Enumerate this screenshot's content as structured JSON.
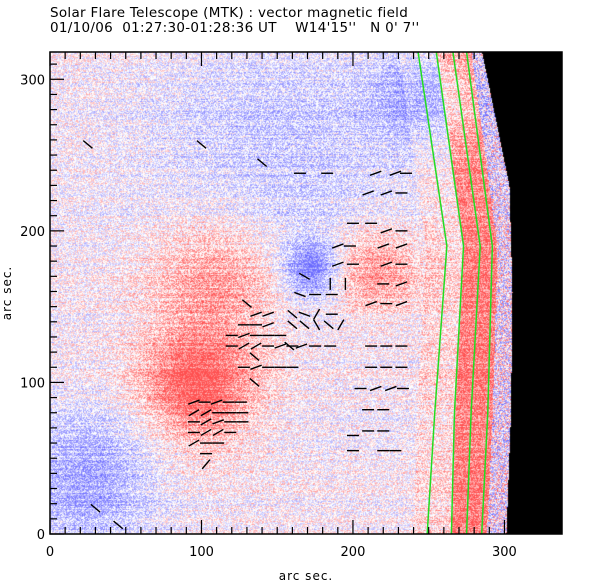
{
  "header": {
    "title": "Solar Flare Telescope (MTK) : vector magnetic field",
    "subtitle_date": "01/10/06",
    "subtitle_time": "01:27:30-01:28:36 UT",
    "subtitle_position": "W14'15''   N 0' 7''"
  },
  "chart_data": {
    "type": "heatmap",
    "title": "Solar Flare Telescope (MTK) : vector magnetic field",
    "subtitle": "01/10/06  01:27:30-01:28:36 UT    W14'15''   N 0' 7''",
    "xlabel": "arc sec.",
    "ylabel": "arc sec.",
    "xlim": [
      0,
      338
    ],
    "ylim": [
      0,
      318
    ],
    "xticks": [
      0,
      100,
      200,
      300
    ],
    "yticks": [
      0,
      100,
      200,
      300
    ],
    "xtick_labels": [
      "0",
      "100",
      "200",
      "300"
    ],
    "ytick_labels": [
      "0",
      "100",
      "200",
      "300"
    ],
    "minor_tick_step": 10,
    "colormap": {
      "positive": "#ff3b3b",
      "negative": "#5b5bff",
      "zero": "#ffffff",
      "off_disk": "#000000",
      "contour": "#22dd22",
      "vector": "#000000"
    },
    "polarity_regions": [
      {
        "name": "positive-spot-main",
        "x": 97,
        "y": 97,
        "radius": 38,
        "strength": 0.95
      },
      {
        "name": "positive-plage-center-left",
        "x": 110,
        "y": 170,
        "radius": 45,
        "strength": 0.6
      },
      {
        "name": "negative-spot",
        "x": 172,
        "y": 175,
        "radius": 18,
        "strength": 0.9
      },
      {
        "name": "positive-plage-right",
        "x": 215,
        "y": 175,
        "radius": 30,
        "strength": 0.65
      },
      {
        "name": "negative-region-lower-left",
        "x": 25,
        "y": 35,
        "radius": 45,
        "strength": 0.6
      },
      {
        "name": "negative-band-top",
        "x": 150,
        "y": 250,
        "radius": 90,
        "strength": 0.35
      },
      {
        "name": "negative-region-top-right",
        "x": 250,
        "y": 290,
        "radius": 35,
        "strength": 0.6
      }
    ],
    "limb_contours": [
      {
        "name": "contour-1",
        "points": [
          [
            243,
            318
          ],
          [
            262,
            190
          ],
          [
            254,
            80
          ],
          [
            249,
            0
          ]
        ]
      },
      {
        "name": "contour-2",
        "points": [
          [
            255,
            318
          ],
          [
            273,
            190
          ],
          [
            267,
            80
          ],
          [
            265,
            0
          ]
        ]
      },
      {
        "name": "contour-3",
        "points": [
          [
            266,
            318
          ],
          [
            284,
            190
          ],
          [
            278,
            80
          ],
          [
            275,
            0
          ]
        ]
      },
      {
        "name": "contour-4",
        "points": [
          [
            275,
            318
          ],
          [
            292,
            190
          ],
          [
            289,
            80
          ],
          [
            285,
            0
          ]
        ]
      }
    ],
    "limb_edge": [
      [
        285,
        318
      ],
      [
        303,
        230
      ],
      [
        305,
        160
      ],
      [
        304,
        80
      ],
      [
        301,
        0
      ]
    ],
    "vectors": [
      {
        "x": 25,
        "y": 257,
        "angle": -40
      },
      {
        "x": 100,
        "y": 257,
        "angle": -40
      },
      {
        "x": 140,
        "y": 245,
        "angle": -40
      },
      {
        "x": 165,
        "y": 238,
        "angle": 0
      },
      {
        "x": 183,
        "y": 238,
        "angle": 0
      },
      {
        "x": 215,
        "y": 238,
        "angle": 20
      },
      {
        "x": 228,
        "y": 238,
        "angle": 20
      },
      {
        "x": 235,
        "y": 238,
        "angle": 0
      },
      {
        "x": 210,
        "y": 225,
        "angle": 20
      },
      {
        "x": 222,
        "y": 225,
        "angle": 20
      },
      {
        "x": 232,
        "y": 225,
        "angle": 0
      },
      {
        "x": 135,
        "y": 100,
        "angle": -40
      },
      {
        "x": 95,
        "y": 87,
        "angle": 20
      },
      {
        "x": 102,
        "y": 87,
        "angle": 0
      },
      {
        "x": 110,
        "y": 87,
        "angle": 20
      },
      {
        "x": 118,
        "y": 87,
        "angle": 0
      },
      {
        "x": 126,
        "y": 87,
        "angle": 0
      },
      {
        "x": 95,
        "y": 80,
        "angle": 210
      },
      {
        "x": 103,
        "y": 80,
        "angle": 210
      },
      {
        "x": 111,
        "y": 80,
        "angle": 0
      },
      {
        "x": 119,
        "y": 80,
        "angle": 0
      },
      {
        "x": 127,
        "y": 80,
        "angle": 0
      },
      {
        "x": 95,
        "y": 74,
        "angle": 0
      },
      {
        "x": 103,
        "y": 74,
        "angle": 210
      },
      {
        "x": 111,
        "y": 74,
        "angle": 20
      },
      {
        "x": 119,
        "y": 74,
        "angle": 0
      },
      {
        "x": 127,
        "y": 74,
        "angle": 0
      },
      {
        "x": 95,
        "y": 67,
        "angle": 0
      },
      {
        "x": 103,
        "y": 67,
        "angle": 210
      },
      {
        "x": 111,
        "y": 67,
        "angle": 210
      },
      {
        "x": 119,
        "y": 67,
        "angle": 0
      },
      {
        "x": 95,
        "y": 60,
        "angle": 210
      },
      {
        "x": 103,
        "y": 60,
        "angle": 0
      },
      {
        "x": 111,
        "y": 60,
        "angle": 0
      },
      {
        "x": 103,
        "y": 53,
        "angle": 0
      },
      {
        "x": 103,
        "y": 46,
        "angle": 50
      },
      {
        "x": 135,
        "y": 117,
        "angle": -40
      },
      {
        "x": 128,
        "y": 110,
        "angle": 0
      },
      {
        "x": 136,
        "y": 110,
        "angle": 20
      },
      {
        "x": 144,
        "y": 110,
        "angle": 0
      },
      {
        "x": 152,
        "y": 110,
        "angle": 0
      },
      {
        "x": 160,
        "y": 110,
        "angle": 0
      },
      {
        "x": 120,
        "y": 124,
        "angle": 0
      },
      {
        "x": 128,
        "y": 124,
        "angle": 210
      },
      {
        "x": 136,
        "y": 124,
        "angle": 210
      },
      {
        "x": 144,
        "y": 124,
        "angle": 0
      },
      {
        "x": 152,
        "y": 124,
        "angle": 20
      },
      {
        "x": 160,
        "y": 124,
        "angle": 0
      },
      {
        "x": 120,
        "y": 131,
        "angle": 0
      },
      {
        "x": 128,
        "y": 131,
        "angle": 20
      },
      {
        "x": 136,
        "y": 131,
        "angle": 0
      },
      {
        "x": 144,
        "y": 131,
        "angle": 0
      },
      {
        "x": 152,
        "y": 131,
        "angle": 0
      },
      {
        "x": 128,
        "y": 138,
        "angle": 0
      },
      {
        "x": 136,
        "y": 138,
        "angle": 0
      },
      {
        "x": 144,
        "y": 138,
        "angle": 20
      },
      {
        "x": 136,
        "y": 145,
        "angle": 20
      },
      {
        "x": 144,
        "y": 145,
        "angle": 20
      },
      {
        "x": 130,
        "y": 152,
        "angle": -40
      },
      {
        "x": 158,
        "y": 124,
        "angle": -40
      },
      {
        "x": 166,
        "y": 124,
        "angle": 20
      },
      {
        "x": 175,
        "y": 124,
        "angle": 0
      },
      {
        "x": 185,
        "y": 124,
        "angle": 0
      },
      {
        "x": 160,
        "y": 138,
        "angle": -40
      },
      {
        "x": 168,
        "y": 138,
        "angle": -40
      },
      {
        "x": 176,
        "y": 138,
        "angle": -60
      },
      {
        "x": 184,
        "y": 138,
        "angle": -40
      },
      {
        "x": 192,
        "y": 138,
        "angle": 60
      },
      {
        "x": 160,
        "y": 145,
        "angle": -40
      },
      {
        "x": 168,
        "y": 145,
        "angle": -20
      },
      {
        "x": 176,
        "y": 145,
        "angle": 60
      },
      {
        "x": 186,
        "y": 145,
        "angle": 0
      },
      {
        "x": 165,
        "y": 158,
        "angle": -20
      },
      {
        "x": 175,
        "y": 158,
        "angle": 0
      },
      {
        "x": 186,
        "y": 158,
        "angle": 0
      },
      {
        "x": 168,
        "y": 170,
        "angle": -30
      },
      {
        "x": 185,
        "y": 165,
        "angle": 90
      },
      {
        "x": 195,
        "y": 165,
        "angle": 90
      },
      {
        "x": 190,
        "y": 178,
        "angle": 20
      },
      {
        "x": 200,
        "y": 178,
        "angle": 0
      },
      {
        "x": 190,
        "y": 190,
        "angle": 20
      },
      {
        "x": 198,
        "y": 190,
        "angle": 0
      },
      {
        "x": 200,
        "y": 205,
        "angle": 0
      },
      {
        "x": 212,
        "y": 205,
        "angle": 0
      },
      {
        "x": 222,
        "y": 200,
        "angle": 20
      },
      {
        "x": 232,
        "y": 200,
        "angle": 0
      },
      {
        "x": 220,
        "y": 190,
        "angle": 20
      },
      {
        "x": 232,
        "y": 190,
        "angle": 20
      },
      {
        "x": 222,
        "y": 178,
        "angle": 20
      },
      {
        "x": 232,
        "y": 178,
        "angle": 0
      },
      {
        "x": 220,
        "y": 165,
        "angle": 0
      },
      {
        "x": 232,
        "y": 165,
        "angle": 20
      },
      {
        "x": 212,
        "y": 152,
        "angle": 20
      },
      {
        "x": 222,
        "y": 152,
        "angle": 0
      },
      {
        "x": 232,
        "y": 152,
        "angle": 20
      },
      {
        "x": 212,
        "y": 124,
        "angle": 0
      },
      {
        "x": 222,
        "y": 124,
        "angle": 0
      },
      {
        "x": 232,
        "y": 124,
        "angle": 0
      },
      {
        "x": 212,
        "y": 110,
        "angle": 0
      },
      {
        "x": 222,
        "y": 110,
        "angle": 0
      },
      {
        "x": 232,
        "y": 110,
        "angle": 0
      },
      {
        "x": 205,
        "y": 96,
        "angle": 0
      },
      {
        "x": 215,
        "y": 96,
        "angle": 20
      },
      {
        "x": 225,
        "y": 96,
        "angle": 20
      },
      {
        "x": 233,
        "y": 96,
        "angle": 0
      },
      {
        "x": 210,
        "y": 82,
        "angle": 0
      },
      {
        "x": 220,
        "y": 82,
        "angle": 0
      },
      {
        "x": 210,
        "y": 68,
        "angle": 0
      },
      {
        "x": 220,
        "y": 68,
        "angle": 0
      },
      {
        "x": 200,
        "y": 65,
        "angle": 0
      },
      {
        "x": 220,
        "y": 55,
        "angle": 0
      },
      {
        "x": 228,
        "y": 55,
        "angle": 0
      },
      {
        "x": 200,
        "y": 55,
        "angle": 0
      },
      {
        "x": 30,
        "y": 17,
        "angle": -40
      },
      {
        "x": 45,
        "y": 6,
        "angle": -40
      }
    ]
  }
}
